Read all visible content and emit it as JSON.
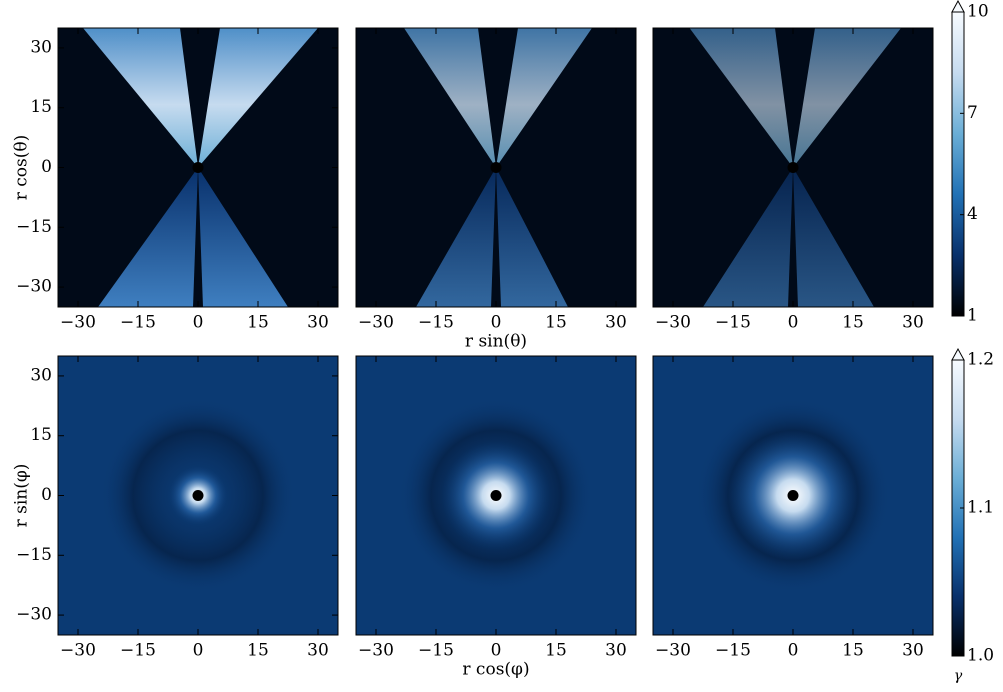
{
  "chart_data": [
    {
      "type": "heatmap",
      "xlim": [
        -35,
        35
      ],
      "ylim": [
        -35,
        35
      ],
      "xticks": [
        {
          "value": -30,
          "label": "−30"
        },
        {
          "value": -15,
          "label": "−15"
        },
        0,
        15,
        30
      ],
      "yticks": [
        {
          "value": -30,
          "label": "−30"
        },
        {
          "value": -15,
          "label": "−15"
        },
        0,
        15,
        30
      ],
      "ylabel": "r cos(θ)"
    },
    {
      "type": "heatmap",
      "xlim": [
        -35,
        35
      ],
      "ylim": [
        -35,
        35
      ],
      "xticks": [
        {
          "value": -30,
          "label": "−30"
        },
        {
          "value": -15,
          "label": "−15"
        },
        0,
        15,
        30
      ],
      "xlabel": "r sin(θ)"
    },
    {
      "type": "heatmap",
      "xlim": [
        -35,
        35
      ],
      "ylim": [
        -35,
        35
      ],
      "xticks": [
        {
          "value": -30,
          "label": "−30"
        },
        {
          "value": -15,
          "label": "−15"
        },
        0,
        15,
        30
      ],
      "colorbar": {
        "lim": [
          1,
          10
        ],
        "ticks": [
          1,
          4,
          7,
          10
        ],
        "extend": "max",
        "colormap": [
          "#000000",
          "#08306b",
          "#2171b5",
          "#6baed6",
          "#c6dbef",
          "#f7fbff"
        ]
      }
    },
    {
      "type": "heatmap",
      "xlim": [
        -35,
        35
      ],
      "ylim": [
        -35,
        35
      ],
      "xticks": [
        {
          "value": -30,
          "label": "−30"
        },
        {
          "value": -15,
          "label": "−15"
        },
        0,
        15,
        30
      ],
      "yticks": [
        {
          "value": -30,
          "label": "−30"
        },
        {
          "value": -15,
          "label": "−15"
        },
        0,
        15,
        30
      ],
      "ylabel": "r sin(φ)"
    },
    {
      "type": "heatmap",
      "xlim": [
        -35,
        35
      ],
      "ylim": [
        -35,
        35
      ],
      "xticks": [
        {
          "value": -30,
          "label": "−30"
        },
        {
          "value": -15,
          "label": "−15"
        },
        0,
        15,
        30
      ],
      "xlabel": "r cos(φ)"
    },
    {
      "type": "heatmap",
      "xlim": [
        -35,
        35
      ],
      "ylim": [
        -35,
        35
      ],
      "xticks": [
        {
          "value": -30,
          "label": "−30"
        },
        {
          "value": -15,
          "label": "−15"
        },
        0,
        15,
        30
      ],
      "colorbar": {
        "lim": [
          {
            "value": 1,
            "label": "1.0"
          },
          1.2
        ],
        "ticks": [
          {
            "value": 1,
            "label": "1.0"
          },
          1.1,
          1.2
        ],
        "extend": "max",
        "label": "γ",
        "colormap": [
          "#000000",
          "#08306b",
          "#2171b5",
          "#6baed6",
          "#c6dbef",
          "#f7fbff"
        ]
      }
    }
  ]
}
